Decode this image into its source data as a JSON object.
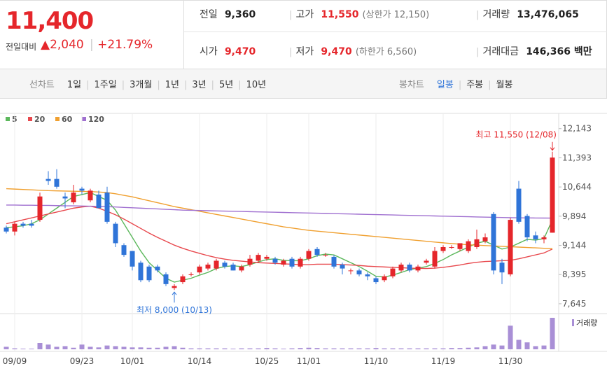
{
  "header": {
    "price": "11,400",
    "change_label": "전일대비",
    "change": "2,040",
    "change_pct": "+21.79%",
    "info": [
      {
        "label": "전일",
        "value": "9,360"
      },
      {
        "label": "고가",
        "value": "11,550",
        "extra": "(상한가 12,150)"
      },
      {
        "label": "거래량",
        "value": "13,476,065"
      },
      {
        "label": "시가",
        "value": "9,470"
      },
      {
        "label": "저가",
        "value": "9,470",
        "extra": "(하한가 6,560)"
      },
      {
        "label": "거래대금",
        "value": "146,366 백만"
      }
    ]
  },
  "tabs": {
    "line_label": "선차트",
    "line": [
      "1일",
      "1주일",
      "3개월",
      "1년",
      "3년",
      "5년",
      "10년"
    ],
    "candle_label": "봉차트",
    "candle": [
      "일봉",
      "주봉",
      "월봉"
    ],
    "selected": "일봉"
  },
  "chart_data": {
    "type": "candlestick",
    "up_color": "#e5262b",
    "down_color": "#2f74d8",
    "categories": [
      null,
      "09/09",
      null,
      null,
      null,
      null,
      null,
      null,
      null,
      "09/23",
      null,
      null,
      null,
      null,
      null,
      "10/01",
      null,
      null,
      null,
      null,
      null,
      null,
      null,
      "10/14",
      null,
      null,
      null,
      null,
      null,
      null,
      null,
      "10/25",
      null,
      null,
      null,
      null,
      "11/01",
      null,
      null,
      null,
      null,
      null,
      null,
      null,
      "11/10",
      null,
      null,
      null,
      null,
      null,
      null,
      null,
      "11/19",
      null,
      null,
      null,
      null,
      null,
      null,
      null,
      "11/30",
      null,
      null,
      null,
      null,
      null
    ],
    "open": [
      9600,
      9500,
      9700,
      9700,
      9800,
      10850,
      10850,
      10400,
      10250,
      10600,
      10300,
      10450,
      10500,
      9700,
      9150,
      9000,
      8700,
      8600,
      8600,
      8400,
      8050,
      8200,
      8400,
      8450,
      8550,
      8550,
      8700,
      8650,
      8500,
      8650,
      8750,
      8800,
      8800,
      8650,
      8800,
      8600,
      8800,
      9050,
      8900,
      8850,
      8650,
      8500,
      8500,
      8400,
      8300,
      8250,
      8350,
      8500,
      8650,
      8500,
      8700,
      8600,
      9000,
      9100,
      9050,
      9000,
      9100,
      9250,
      9950,
      8700,
      8400,
      10600,
      9900,
      9400,
      9300,
      9470
    ],
    "high": [
      9650,
      9750,
      9750,
      9800,
      10500,
      11050,
      11100,
      10500,
      10700,
      10650,
      10600,
      10550,
      10650,
      9750,
      9200,
      9000,
      8750,
      8650,
      8650,
      8450,
      8150,
      8400,
      8450,
      8650,
      8700,
      8800,
      8750,
      8700,
      8650,
      8900,
      8950,
      8900,
      8850,
      8800,
      8850,
      8850,
      9050,
      9100,
      8950,
      8900,
      8700,
      8550,
      8550,
      8450,
      8350,
      8400,
      8600,
      8700,
      8700,
      8650,
      8800,
      9100,
      9150,
      9150,
      9200,
      9300,
      9550,
      9450,
      10000,
      8800,
      9850,
      10800,
      9950,
      9500,
      9400,
      11550
    ],
    "low": [
      9450,
      9400,
      9600,
      9600,
      9750,
      10700,
      10600,
      10100,
      10200,
      10450,
      10250,
      10100,
      9700,
      9100,
      8850,
      8500,
      8200,
      8200,
      8450,
      8100,
      8000,
      8150,
      8350,
      8400,
      8500,
      8500,
      8550,
      8500,
      8450,
      8600,
      8700,
      8750,
      8650,
      8600,
      8550,
      8550,
      8750,
      8850,
      8850,
      8550,
      8400,
      8400,
      8350,
      8250,
      8150,
      8200,
      8300,
      8450,
      8450,
      8450,
      8650,
      8550,
      8950,
      9050,
      9000,
      8950,
      9050,
      9200,
      8400,
      8150,
      8350,
      9700,
      9250,
      9200,
      9200,
      9470
    ],
    "close": [
      9500,
      9700,
      9650,
      9650,
      10400,
      10800,
      10650,
      10350,
      10500,
      10550,
      10550,
      10100,
      9750,
      9200,
      8900,
      8600,
      8250,
      8250,
      8500,
      8150,
      8100,
      8350,
      8400,
      8600,
      8650,
      8750,
      8600,
      8500,
      8600,
      8800,
      8900,
      8850,
      8700,
      8750,
      8600,
      8800,
      9000,
      8900,
      8900,
      8600,
      8550,
      8500,
      8400,
      8350,
      8200,
      8350,
      8550,
      8650,
      8500,
      8600,
      8750,
      9000,
      9100,
      9100,
      9200,
      9250,
      9300,
      9350,
      8500,
      8450,
      9800,
      9750,
      9350,
      9300,
      9350,
      11400
    ],
    "moving_averages": [
      {
        "name": "5",
        "color": "#5cb85c",
        "values": [
          9600,
          9620,
          9650,
          9700,
          9800,
          9950,
          10100,
          10250,
          10400,
          10450,
          10500,
          10400,
          10300,
          10050,
          9700,
          9350,
          9000,
          8700,
          8500,
          8300,
          8200,
          8250,
          8300,
          8380,
          8450,
          8550,
          8600,
          8620,
          8600,
          8650,
          8720,
          8780,
          8800,
          8760,
          8750,
          8750,
          8800,
          8880,
          8920,
          8900,
          8800,
          8700,
          8600,
          8480,
          8350,
          8330,
          8380,
          8450,
          8520,
          8560,
          8600,
          8680,
          8780,
          8900,
          9000,
          9100,
          9200,
          9250,
          9150,
          9050,
          9100,
          9200,
          9300,
          9280,
          9320,
          9800
        ]
      },
      {
        "name": "20",
        "color": "#e8484d",
        "values": [
          9700,
          9750,
          9800,
          9850,
          9900,
          9950,
          10000,
          10050,
          10100,
          10130,
          10150,
          10100,
          10020,
          9930,
          9820,
          9700,
          9580,
          9460,
          9350,
          9250,
          9150,
          9070,
          9000,
          8940,
          8880,
          8830,
          8790,
          8760,
          8740,
          8720,
          8700,
          8690,
          8680,
          8670,
          8660,
          8650,
          8650,
          8660,
          8660,
          8660,
          8650,
          8640,
          8630,
          8610,
          8600,
          8590,
          8580,
          8570,
          8560,
          8555,
          8550,
          8560,
          8580,
          8610,
          8640,
          8680,
          8710,
          8730,
          8740,
          8750,
          8760,
          8800,
          8850,
          8900,
          8950,
          9050
        ]
      },
      {
        "name": "60",
        "color": "#f0a030",
        "values": [
          10600,
          10590,
          10580,
          10570,
          10560,
          10550,
          10545,
          10540,
          10535,
          10530,
          10525,
          10515,
          10500,
          10470,
          10430,
          10390,
          10340,
          10290,
          10240,
          10190,
          10140,
          10100,
          10060,
          10020,
          9980,
          9940,
          9900,
          9860,
          9820,
          9780,
          9740,
          9700,
          9660,
          9620,
          9590,
          9560,
          9530,
          9510,
          9490,
          9470,
          9450,
          9430,
          9410,
          9390,
          9370,
          9350,
          9330,
          9310,
          9290,
          9270,
          9250,
          9230,
          9210,
          9190,
          9175,
          9160,
          9150,
          9140,
          9130,
          9120,
          9110,
          9100,
          9090,
          9080,
          9070,
          9060
        ]
      },
      {
        "name": "120",
        "color": "#a070d0",
        "values": [
          10180,
          10180,
          10175,
          10175,
          10170,
          10170,
          10165,
          10160,
          10160,
          10155,
          10150,
          10145,
          10140,
          10130,
          10120,
          10110,
          10100,
          10090,
          10080,
          10070,
          10060,
          10050,
          10045,
          10040,
          10035,
          10030,
          10025,
          10020,
          10015,
          10010,
          10005,
          10000,
          9995,
          9990,
          9985,
          9980,
          9975,
          9970,
          9965,
          9960,
          9955,
          9950,
          9945,
          9940,
          9935,
          9930,
          9925,
          9920,
          9915,
          9910,
          9905,
          9900,
          9895,
          9890,
          9885,
          9880,
          9875,
          9870,
          9865,
          9860,
          9855,
          9852,
          9850,
          9848,
          9846,
          9845
        ]
      }
    ],
    "volume": {
      "name": "거래량",
      "color": "#a98fd6",
      "values": [
        8,
        3,
        2,
        2,
        20,
        15,
        8,
        10,
        5,
        15,
        8,
        6,
        12,
        10,
        8,
        6,
        6,
        5,
        5,
        8,
        10,
        5,
        3,
        3,
        3,
        3,
        3,
        2,
        3,
        3,
        3,
        4,
        3,
        2,
        3,
        4,
        5,
        4,
        3,
        3,
        3,
        3,
        3,
        3,
        4,
        3,
        3,
        3,
        3,
        3,
        3,
        3,
        3,
        4,
        4,
        5,
        6,
        10,
        15,
        12,
        75,
        30,
        22,
        10,
        12,
        100
      ]
    },
    "ylim": [
      7500,
      12300
    ],
    "yticks": [
      {
        "value": 12143,
        "label": "12,143"
      },
      {
        "value": 11393,
        "label": "11,393"
      },
      {
        "value": 10644,
        "label": "10,644"
      },
      {
        "value": 9894,
        "label": "9,894"
      },
      {
        "value": 9144,
        "label": "9,144"
      },
      {
        "value": 8395,
        "label": "8,395"
      },
      {
        "value": 7645,
        "label": "7,645"
      }
    ],
    "annotations": [
      {
        "text": "최고 11,550 (12/08)",
        "index": 65,
        "price": 11550
      },
      {
        "text": "최저 8,000 (10/13)",
        "index": 20,
        "price": 8000
      }
    ]
  }
}
